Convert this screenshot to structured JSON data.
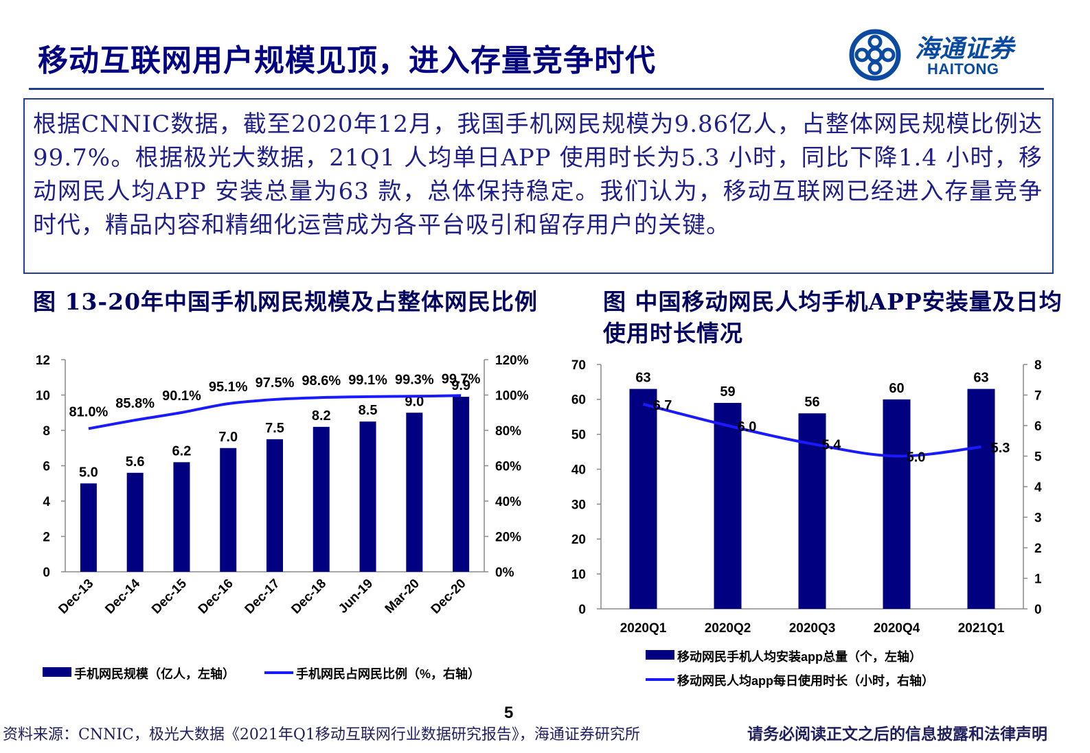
{
  "header": {
    "title": "移动互联网用户规模见顶，进入存量竞争时代",
    "logo_cn": "海通证券",
    "logo_en": "HAITONG"
  },
  "summary": "根据CNNIC数据，截至2020年12月，我国手机网民规模为9.86亿人，占整体网民规模比例达99.7%。根据极光大数据，21Q1 人均单日APP 使用时长为5.3 小时，同比下降1.4 小时，移动网民人均APP 安装总量为63 款，总体保持稳定。我们认为，移动互联网已经进入存量竞争时代，精品内容和精细化运营成为各平台吸引和留存用户的关键。",
  "figures": {
    "fig1_title": "图 13-20年中国手机网民规模及占整体网民比例",
    "fig2_title": "图 中国移动网民人均手机APP安装量及日均使用时长情况"
  },
  "footer": {
    "page": "5",
    "source": "资料来源：CNNIC，极光大数据《2021年Q1移动互联网行业数据研究报告》，海通证券研究所",
    "disclaimer": "请务必阅读正文之后的信息披露和法律声明"
  },
  "colors": {
    "bar": "#000080",
    "line": "#1a1aff",
    "title": "#000080",
    "border": "#1f3f8f"
  },
  "chart_data": [
    {
      "type": "bar",
      "categories": [
        "Dec-13",
        "Dec-14",
        "Dec-15",
        "Dec-16",
        "Dec-17",
        "Dec-18",
        "Jun-19",
        "Mar-20",
        "Dec-20"
      ],
      "series": [
        {
          "name": "手机网民规模（亿人，左轴）",
          "type": "bar",
          "axis": "left",
          "values": [
            5.0,
            5.6,
            6.2,
            7.0,
            7.5,
            8.2,
            8.5,
            9.0,
            9.9
          ],
          "labels": [
            "5.0",
            "5.6",
            "6.2",
            "7.0",
            "7.5",
            "8.2",
            "8.5",
            "9.0",
            "9.9"
          ]
        },
        {
          "name": "手机网民占网民比例（%，右轴）",
          "type": "line",
          "axis": "right",
          "values": [
            81.0,
            85.8,
            90.1,
            95.1,
            97.5,
            98.6,
            99.1,
            99.3,
            99.7
          ],
          "labels": [
            "81.0%",
            "85.8%",
            "90.1%",
            "95.1%",
            "97.5%",
            "98.6%",
            "99.1%",
            "99.3%",
            "99.7%"
          ]
        }
      ],
      "ylim_left": [
        0,
        12
      ],
      "yticks_left": [
        "0",
        "2",
        "4",
        "6",
        "8",
        "10",
        "12"
      ],
      "ylim_right": [
        0,
        120
      ],
      "yticks_right": [
        "0%",
        "20%",
        "40%",
        "60%",
        "80%",
        "100%",
        "120%"
      ],
      "grid": false,
      "legend": "bottom"
    },
    {
      "type": "bar",
      "categories": [
        "2020Q1",
        "2020Q2",
        "2020Q3",
        "2020Q4",
        "2021Q1"
      ],
      "series": [
        {
          "name": "移动网民手机人均安装app总量（个，左轴）",
          "type": "bar",
          "axis": "left",
          "values": [
            63,
            59,
            56,
            60,
            63
          ],
          "labels": [
            "63",
            "59",
            "56",
            "60",
            "63"
          ]
        },
        {
          "name": "移动网民人均app每日使用时长（小时，右轴）",
          "type": "line",
          "axis": "right",
          "values": [
            6.7,
            6.0,
            5.4,
            5.0,
            5.3
          ],
          "labels": [
            "6.7",
            "6.0",
            "5.4",
            "5.0",
            "5.3"
          ]
        }
      ],
      "ylim_left": [
        0,
        70
      ],
      "yticks_left": [
        "0",
        "10",
        "20",
        "30",
        "40",
        "50",
        "60",
        "70"
      ],
      "ylim_right": [
        0,
        8
      ],
      "yticks_right": [
        "0",
        "1",
        "2",
        "3",
        "4",
        "5",
        "6",
        "7",
        "8"
      ],
      "grid": false,
      "legend": "bottom"
    }
  ]
}
